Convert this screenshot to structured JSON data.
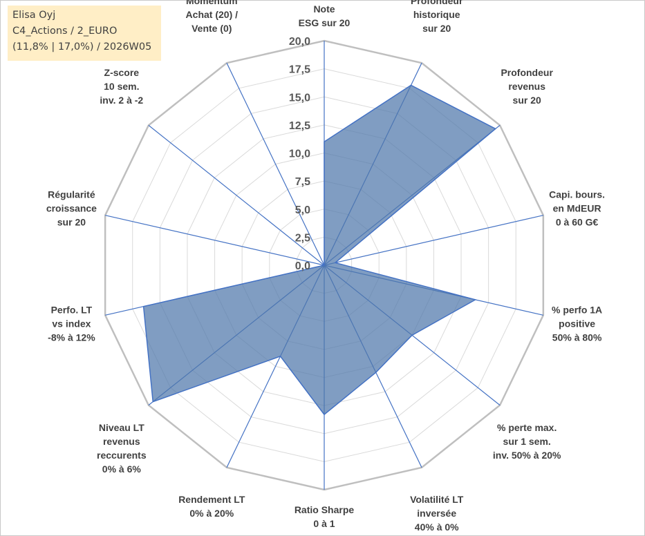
{
  "info": {
    "line1": "Elisa Oyj",
    "line2": "C4_Actions / 2_EURO",
    "line3": "(11,8% | 17,0%) / 2026W05"
  },
  "chart_data": {
    "type": "radar",
    "rmax": 20,
    "ticks": [
      "0,0",
      "2,5",
      "5,0",
      "7,5",
      "10,0",
      "12,5",
      "15,0",
      "17,5",
      "20,0"
    ],
    "categories": [
      [
        "Note",
        "ESG sur 20"
      ],
      [
        "Profondeur",
        "historique",
        "sur 20"
      ],
      [
        "Profondeur",
        "revenus",
        "sur 20"
      ],
      [
        "Capi. bours.",
        "en MdEUR",
        "0 à 60 G€"
      ],
      [
        "% perfo 1A",
        "positive",
        "50% à 80%"
      ],
      [
        "% perte max.",
        "sur 1 sem.",
        "inv. 50% à 20%"
      ],
      [
        "Volatilité LT",
        "inversée",
        "40% à 0%"
      ],
      [
        "Ratio Sharpe",
        "0 à 1"
      ],
      [
        "Rendement LT",
        "0% à 20%"
      ],
      [
        "Niveau LT",
        "revenus",
        "reccurents",
        "0% à 6%"
      ],
      [
        "Perfo. LT",
        "vs index",
        "-8% à 12%"
      ],
      [
        "Régularité",
        "croissance",
        "sur 20"
      ],
      [
        "Z-score",
        "10 sem.",
        "inv. 2 à -2"
      ],
      [
        "Momentum",
        "Achat (20) /",
        "Vente (0)"
      ]
    ],
    "values": [
      11.0,
      17.8,
      19.5,
      1.0,
      13.8,
      10.0,
      10.6,
      13.3,
      9.0,
      19.5,
      16.5,
      0,
      0,
      0
    ],
    "colors": {
      "area": "#4f77aa",
      "spoke": "#4472c4",
      "grid": "#d9d9d9"
    }
  }
}
